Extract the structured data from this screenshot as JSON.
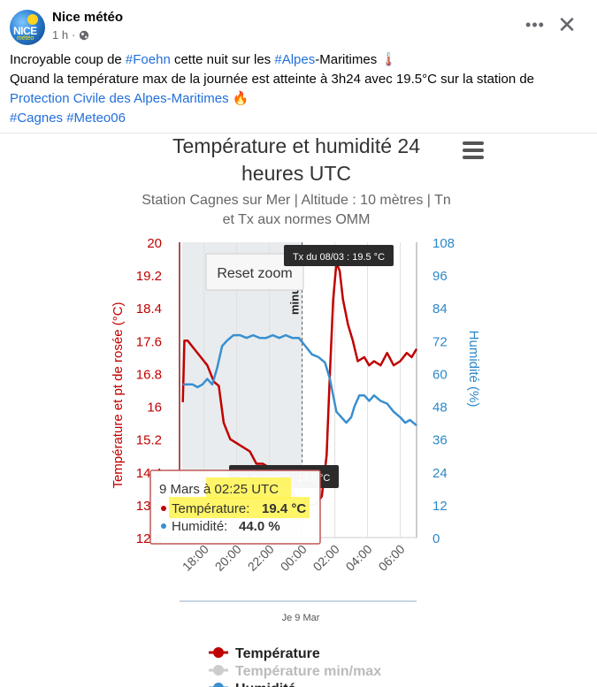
{
  "post": {
    "author": "Nice météo",
    "time": "1 h",
    "dot": "·",
    "avatar_text": "NICE",
    "avatar_text2": "météo",
    "line1": [
      {
        "text": "Incroyable coup de ",
        "hash": false
      },
      {
        "text": "#Foehn",
        "hash": true
      },
      {
        "text": " cette nuit sur les ",
        "hash": false
      },
      {
        "text": "#Alpes",
        "hash": true
      },
      {
        "text": "-Maritimes 🌡️",
        "hash": false
      }
    ],
    "line2": "Quand la température max de la journée est atteinte à 3h24 avec 19.5°C sur la station de",
    "line3_link": "Protection Civile des Alpes-Maritimes",
    "line3_emoji": " 🔥",
    "tags": [
      "#Cagnes",
      "#Meteo06"
    ]
  },
  "icons": [
    "globe-icon",
    "more-options-icon",
    "close-icon",
    "chart-menu-icon"
  ],
  "chart_data": {
    "type": "line",
    "title": "Température et humidité 24 heures UTC",
    "title_lines": [
      "Température et humidité 24",
      "heures UTC"
    ],
    "subtitle": "Station Cagnes sur Mer | Altitude : 10 mètres | Tn et Tx aux normes OMM",
    "subtitle_lines": [
      "Station Cagnes sur Mer | Altitude : 10 mètres | Tn",
      "et Tx aux normes OMM"
    ],
    "ylabel_left": "Température et pt de rosée (°C)",
    "ylabel_right": "Humidité (%)",
    "ylim_left": [
      12.8,
      20
    ],
    "ylim_right": [
      0,
      108
    ],
    "yticks_left": [
      "20",
      "19.2",
      "18.4",
      "17.6",
      "16.8",
      "16",
      "15.2",
      "14.4",
      "13.6",
      "12.8"
    ],
    "yticks_right": [
      "108",
      "96",
      "84",
      "72",
      "60",
      "48",
      "36",
      "24",
      "12",
      "0"
    ],
    "xlim": [
      16.5,
      31
    ],
    "xticks": [
      {
        "value": 18,
        "label": "18:00"
      },
      {
        "value": 20,
        "label": "20:00"
      },
      {
        "value": 22,
        "label": "22:00"
      },
      {
        "value": 24,
        "label": "00:00"
      },
      {
        "value": 26,
        "label": "02:00"
      },
      {
        "value": 28,
        "label": "04:00"
      },
      {
        "value": 30,
        "label": "06:00"
      }
    ],
    "navigator_label": "Je 9 Mar",
    "plot_band_label": "minuit UTC",
    "reset_zoom_label": "Reset zoom",
    "flags": {
      "tx": "Tx du 08/03 : 19.5 °C",
      "tn": "Tn du 09/03 : 13.6 °C"
    },
    "tooltip": {
      "date": "9 Mars à 02:25 UTC",
      "temp_label": "Température:",
      "temp_value": "19.4 °C",
      "hum_label": "Humidité:",
      "hum_value": "44.0 %"
    },
    "legend": [
      "Température",
      "Température min/max",
      "Humidité"
    ],
    "series": [
      {
        "name": "Température",
        "color": "#c00000",
        "axis": "left",
        "points": [
          [
            16.7,
            16.1
          ],
          [
            16.8,
            17.6
          ],
          [
            17.0,
            17.6
          ],
          [
            17.4,
            17.4
          ],
          [
            17.8,
            17.2
          ],
          [
            18.2,
            17.0
          ],
          [
            18.6,
            16.6
          ],
          [
            18.9,
            16.5
          ],
          [
            19.2,
            15.6
          ],
          [
            19.6,
            15.2
          ],
          [
            20.0,
            15.1
          ],
          [
            20.4,
            15.0
          ],
          [
            20.8,
            14.9
          ],
          [
            21.2,
            14.6
          ],
          [
            21.6,
            14.6
          ],
          [
            22.0,
            14.5
          ],
          [
            22.4,
            14.4
          ],
          [
            22.8,
            14.2
          ],
          [
            23.2,
            14.0
          ],
          [
            23.6,
            13.8
          ],
          [
            24.0,
            13.7
          ],
          [
            24.4,
            13.6
          ],
          [
            24.8,
            13.6
          ],
          [
            25.2,
            13.8
          ],
          [
            25.5,
            14.8
          ],
          [
            25.7,
            16.8
          ],
          [
            25.9,
            18.6
          ],
          [
            26.1,
            19.5
          ],
          [
            26.3,
            19.3
          ],
          [
            26.5,
            18.6
          ],
          [
            26.8,
            18.0
          ],
          [
            27.1,
            17.6
          ],
          [
            27.4,
            17.1
          ],
          [
            27.8,
            17.2
          ],
          [
            28.1,
            17.0
          ],
          [
            28.4,
            17.1
          ],
          [
            28.8,
            17.0
          ],
          [
            29.2,
            17.3
          ],
          [
            29.6,
            17.0
          ],
          [
            30.0,
            17.1
          ],
          [
            30.4,
            17.3
          ],
          [
            30.7,
            17.2
          ],
          [
            31.0,
            17.4
          ]
        ]
      },
      {
        "name": "Humidité",
        "color": "#3a8fd0",
        "axis": "right",
        "points": [
          [
            16.7,
            56
          ],
          [
            17.3,
            56
          ],
          [
            17.6,
            55
          ],
          [
            17.9,
            56
          ],
          [
            18.2,
            58
          ],
          [
            18.5,
            56
          ],
          [
            18.8,
            62
          ],
          [
            19.1,
            70
          ],
          [
            19.4,
            72
          ],
          [
            19.8,
            74
          ],
          [
            20.2,
            74
          ],
          [
            20.6,
            73
          ],
          [
            21.0,
            74
          ],
          [
            21.4,
            73
          ],
          [
            21.8,
            73
          ],
          [
            22.2,
            74
          ],
          [
            22.6,
            73
          ],
          [
            23.0,
            74
          ],
          [
            23.4,
            73
          ],
          [
            23.8,
            73
          ],
          [
            24.2,
            70
          ],
          [
            24.6,
            67
          ],
          [
            25.0,
            66
          ],
          [
            25.4,
            64
          ],
          [
            25.7,
            58
          ],
          [
            25.9,
            52
          ],
          [
            26.1,
            46
          ],
          [
            26.4,
            44
          ],
          [
            26.7,
            42
          ],
          [
            27.0,
            44
          ],
          [
            27.2,
            48
          ],
          [
            27.5,
            52
          ],
          [
            27.8,
            52
          ],
          [
            28.1,
            50
          ],
          [
            28.4,
            52
          ],
          [
            28.8,
            50
          ],
          [
            29.2,
            49
          ],
          [
            29.6,
            46
          ],
          [
            30.0,
            44
          ],
          [
            30.3,
            42
          ],
          [
            30.6,
            43
          ],
          [
            31.0,
            41
          ]
        ]
      }
    ]
  }
}
